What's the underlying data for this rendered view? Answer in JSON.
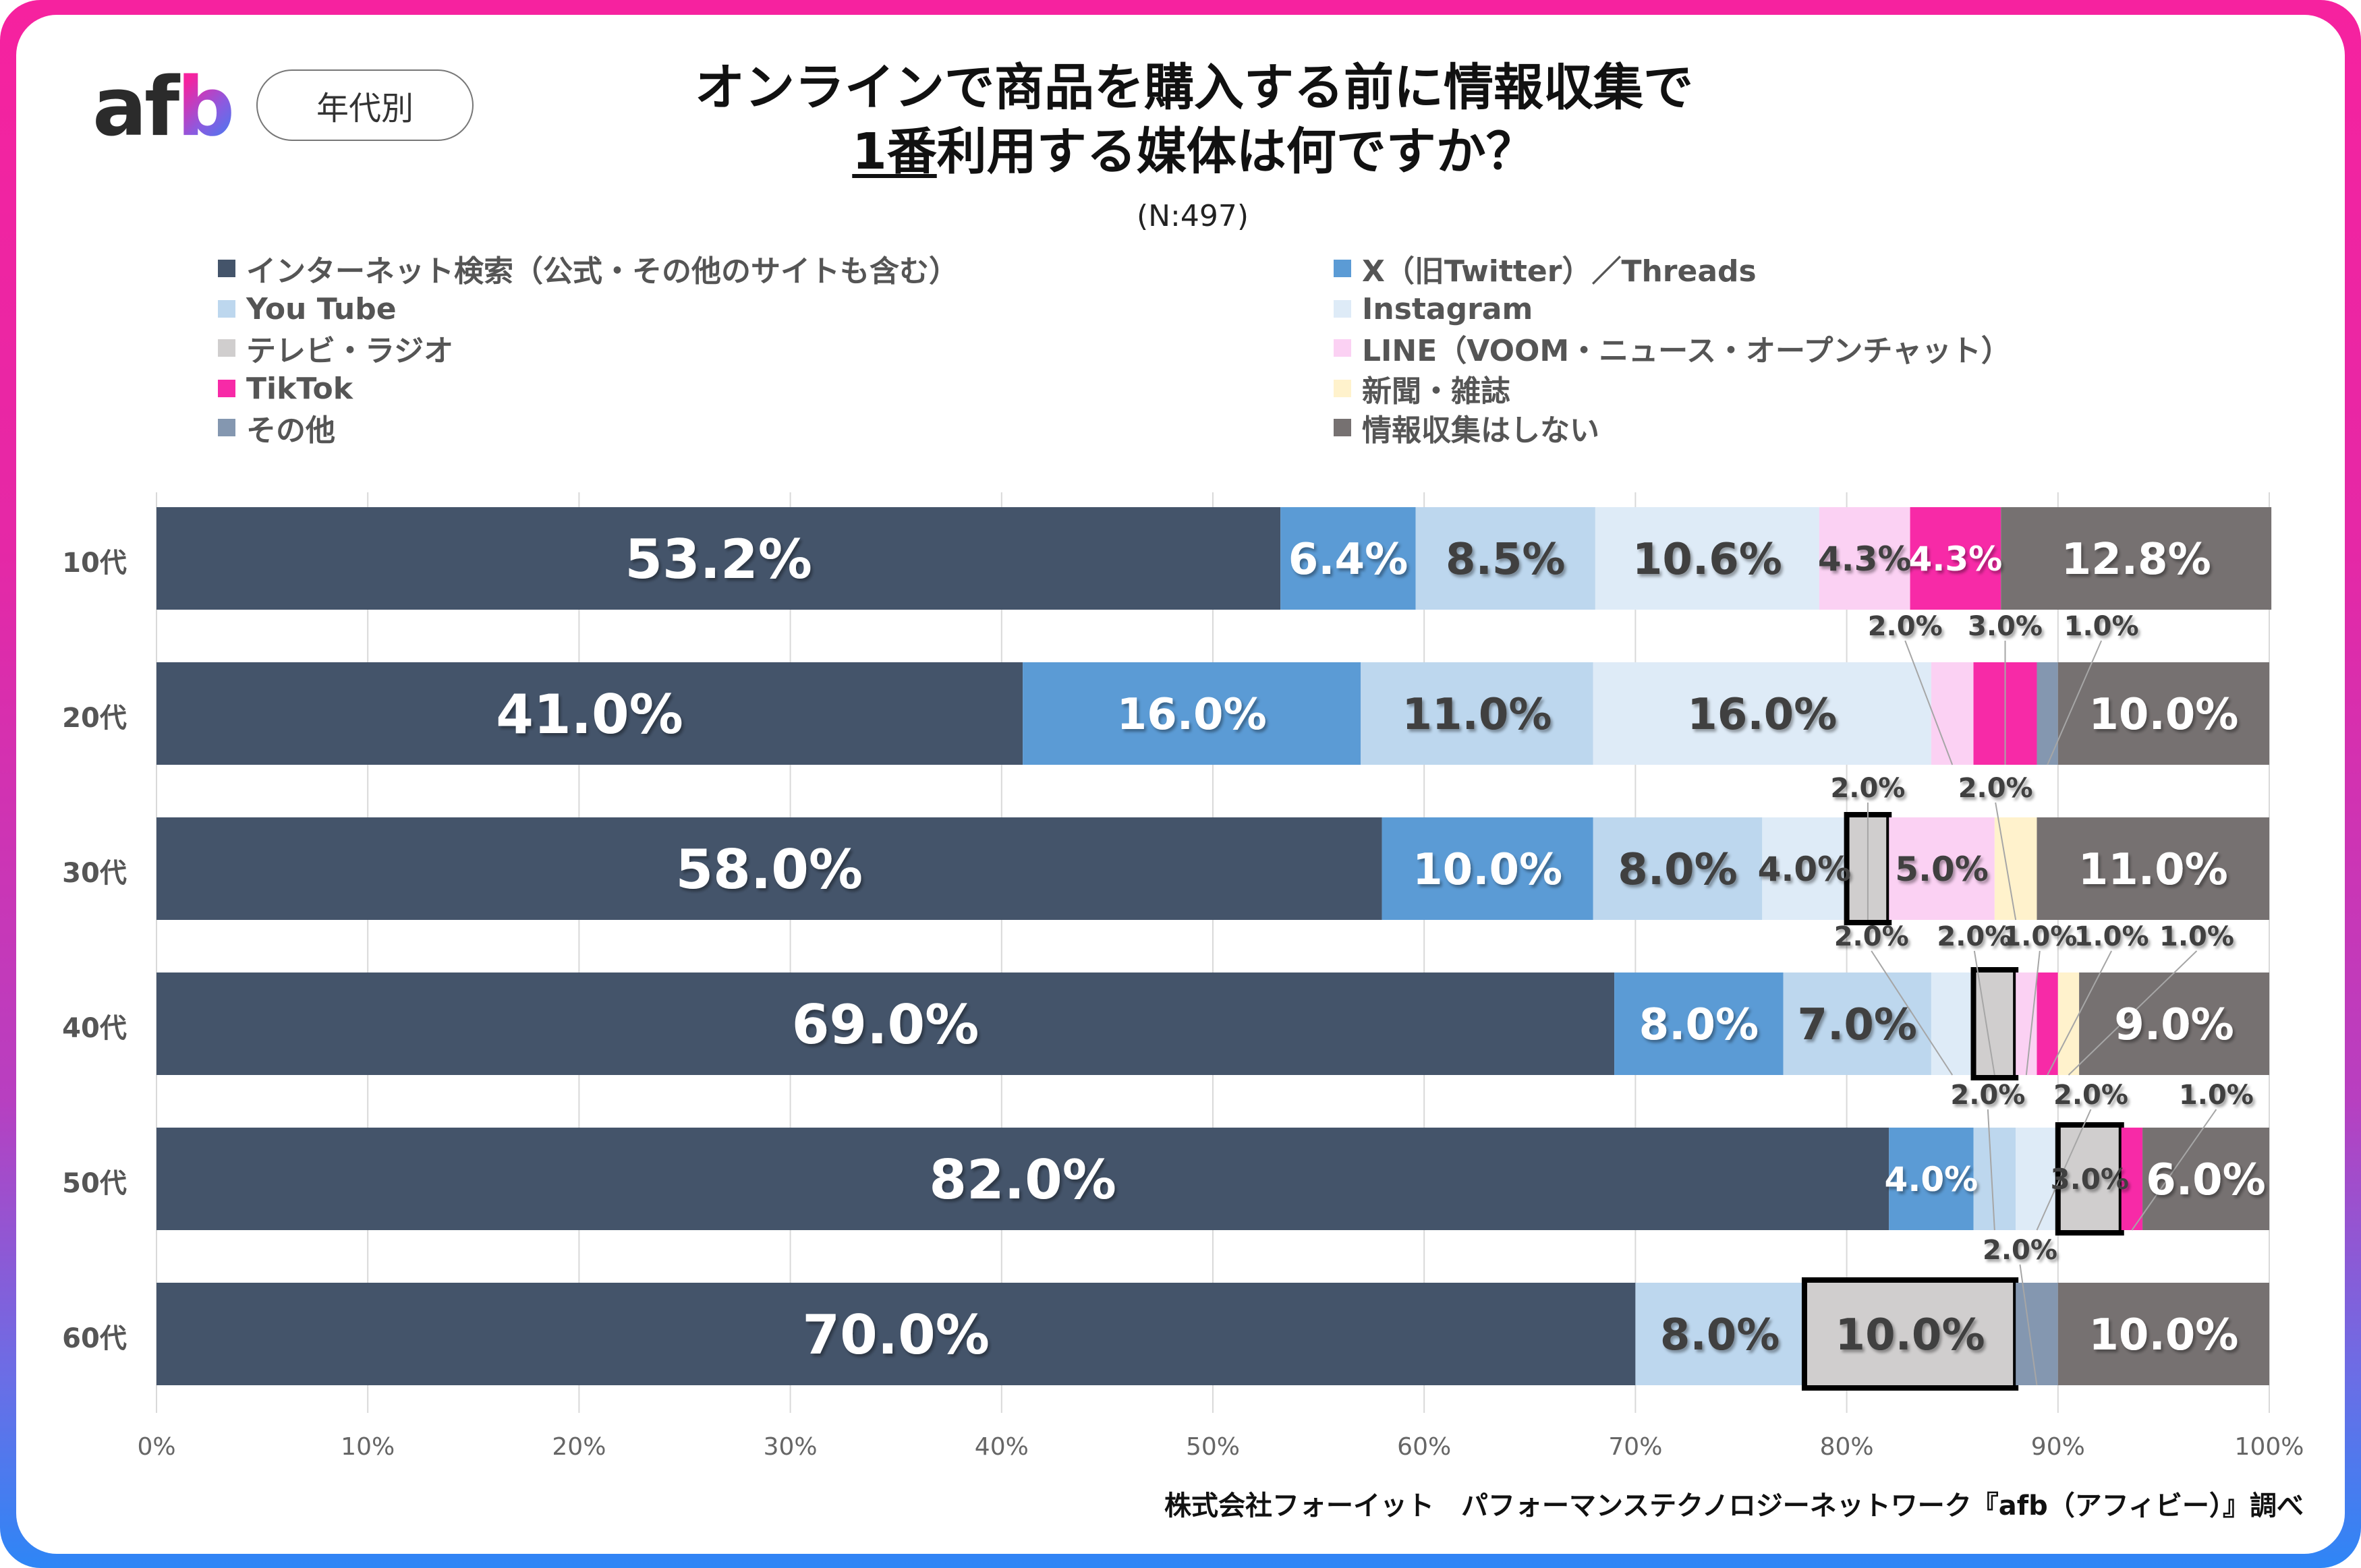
{
  "header": {
    "logo_text": {
      "a": "a",
      "f": "f",
      "b": "b"
    },
    "filter_pill": "年代別",
    "title_line1": "オンラインで商品を購入する前に情報収集で",
    "title_line2_underlined": "1番",
    "title_line2_rest": "利用する媒体は何ですか？",
    "sample_size": "(N:497)"
  },
  "footer": {
    "source": "株式会社フォーイット　パフォーマンステクノロジーネットワーク『afb（アフィビー）』調べ"
  },
  "colors": {
    "frame_top": "#f6229f",
    "frame_bottom": "#2e86f6"
  },
  "chart_data": {
    "type": "bar",
    "orientation": "horizontal",
    "stacked": "100%",
    "title": "オンラインで商品を購入する前に情報収集で1番利用する媒体は何ですか？",
    "subtitle": "(N:497)",
    "xlabel": "",
    "ylabel": "",
    "xlim": [
      0,
      100
    ],
    "x_ticks": [
      "0%",
      "10%",
      "20%",
      "30%",
      "40%",
      "50%",
      "60%",
      "70%",
      "80%",
      "90%",
      "100%"
    ],
    "grid": "vertical",
    "legend_position": "top",
    "categories": [
      "10代",
      "20代",
      "30代",
      "40代",
      "50代",
      "60代"
    ],
    "highlighted_series": "テレビ・ラジオ",
    "series": [
      {
        "name": "インターネット検索（公式・その他のサイトも含む）",
        "color": "#44546a",
        "label_color": "#ffffff",
        "values": [
          53.2,
          41.0,
          58.0,
          69.0,
          82.0,
          70.0
        ]
      },
      {
        "name": "X（旧Twitter）／Threads",
        "color": "#5b9bd5",
        "label_color": "#ffffff",
        "values": [
          6.4,
          16.0,
          10.0,
          8.0,
          4.0,
          0
        ]
      },
      {
        "name": "You Tube",
        "color": "#bdd7ee",
        "label_color": "#404040",
        "values": [
          8.5,
          11.0,
          8.0,
          7.0,
          2.0,
          8.0
        ]
      },
      {
        "name": "Instagram",
        "color": "#deebf7",
        "label_color": "#404040",
        "values": [
          10.6,
          16.0,
          4.0,
          2.0,
          2.0,
          0
        ]
      },
      {
        "name": "テレビ・ラジオ",
        "color": "#d0cece",
        "label_color": "#404040",
        "values": [
          0,
          0,
          2.0,
          2.0,
          3.0,
          10.0
        ]
      },
      {
        "name": "LINE（VOOM・ニュース・オープンチャット）",
        "color": "#fbd1f3",
        "label_color": "#404040",
        "values": [
          4.3,
          2.0,
          5.0,
          1.0,
          0,
          0
        ]
      },
      {
        "name": "TikTok",
        "color": "#f72aa7",
        "label_color": "#ffffff",
        "values": [
          4.3,
          3.0,
          0,
          1.0,
          1.0,
          0
        ]
      },
      {
        "name": "新聞・雑誌",
        "color": "#fff2cc",
        "label_color": "#404040",
        "values": [
          0,
          0,
          2.0,
          1.0,
          0,
          0
        ]
      },
      {
        "name": "その他",
        "color": "#8497b0",
        "label_color": "#ffffff",
        "values": [
          0,
          1.0,
          0,
          0,
          0,
          2.0
        ]
      },
      {
        "name": "情報収集はしない",
        "color": "#767171",
        "label_color": "#ffffff",
        "values": [
          12.8,
          10.0,
          11.0,
          9.0,
          6.0,
          10.0
        ]
      }
    ],
    "data_labels": [
      [
        "53.2%",
        "6.4%",
        "8.5%",
        "10.6%",
        "",
        "4.3%",
        "4.3%",
        "",
        "",
        "12.8%"
      ],
      [
        "41.0%",
        "16.0%",
        "11.0%",
        "16.0%",
        "",
        "2.0%",
        "3.0%",
        "",
        "1.0%",
        "10.0%"
      ],
      [
        "58.0%",
        "10.0%",
        "8.0%",
        "4.0%",
        "2.0%",
        "5.0%",
        "",
        "2.0%",
        "",
        "11.0%"
      ],
      [
        "69.0%",
        "8.0%",
        "7.0%",
        "2.0%",
        "2.0%",
        "1.0%",
        "1.0%",
        "1.0%",
        "",
        "9.0%"
      ],
      [
        "82.0%",
        "4.0%",
        "2.0%",
        "2.0%",
        "3.0%",
        "",
        "1.0%",
        "",
        "",
        "6.0%"
      ],
      [
        "70.0%",
        "",
        "8.0%",
        "",
        "10.0%",
        "",
        "",
        "",
        "2.0%",
        "10.0%"
      ]
    ]
  },
  "legend": {
    "left": [
      {
        "label": "インターネット検索（公式・その他のサイトも含む）",
        "color": "#44546a"
      },
      {
        "label": "You Tube",
        "color": "#bdd7ee"
      },
      {
        "label": "テレビ・ラジオ",
        "color": "#d0cece"
      },
      {
        "label": "TikTok",
        "color": "#f72aa7"
      },
      {
        "label": "その他",
        "color": "#8497b0"
      }
    ],
    "right": [
      {
        "label": "X（旧Twitter）／Threads",
        "color": "#5b9bd5"
      },
      {
        "label": "Instagram",
        "color": "#deebf7"
      },
      {
        "label": "LINE（VOOM・ニュース・オープンチャット）",
        "color": "#fbd1f3"
      },
      {
        "label": "新聞・雑誌",
        "color": "#fff2cc"
      },
      {
        "label": "情報収集はしない",
        "color": "#767171"
      }
    ]
  }
}
